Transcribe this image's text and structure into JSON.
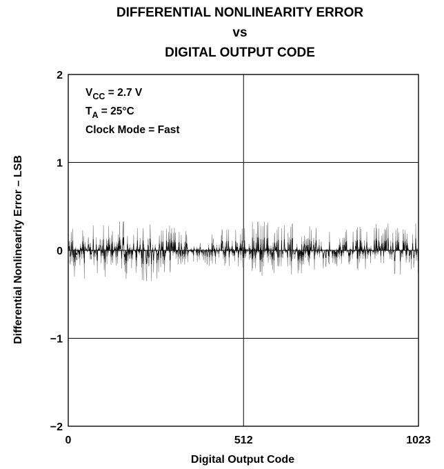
{
  "chart_data": {
    "type": "line",
    "title": [
      "DIFFERENTIAL NONLINEARITY ERROR",
      "vs",
      "DIGITAL OUTPUT CODE"
    ],
    "xlabel": "Digital Output Code",
    "ylabel": "Differential Nonlinearity Error – LSB",
    "xlim": [
      0,
      1023
    ],
    "ylim": [
      -2,
      2
    ],
    "x_ticks": [
      0,
      512,
      1023
    ],
    "x_tick_labels": [
      "0",
      "512",
      "1023"
    ],
    "y_ticks": [
      2,
      1,
      0,
      -1,
      -2
    ],
    "y_tick_labels": [
      "2",
      "1",
      "0",
      "−1",
      "−2"
    ],
    "grid": true,
    "annotations": {
      "vcc": {
        "main": "V",
        "sub": "CC",
        "rest": " = 2.7 V"
      },
      "ta": {
        "main": "T",
        "sub": "A",
        "rest": " = 25°C"
      },
      "clock": "Clock Mode = Fast"
    },
    "series": [
      {
        "envelope": {
          "x": [
            0,
            64,
            128,
            192,
            256,
            320,
            384,
            448,
            512,
            576,
            640,
            704,
            768,
            832,
            896,
            960,
            1023
          ],
          "y_max": [
            0.32,
            0.3,
            0.38,
            0.32,
            0.34,
            0.26,
            0.2,
            0.24,
            0.34,
            0.38,
            0.34,
            0.28,
            0.22,
            0.28,
            0.32,
            0.34,
            0.32
          ],
          "y_min": [
            -0.32,
            -0.33,
            -0.32,
            -0.34,
            -0.44,
            -0.2,
            -0.18,
            -0.2,
            -0.24,
            -0.34,
            -0.3,
            -0.24,
            -0.2,
            -0.26,
            -0.24,
            -0.28,
            -0.3
          ]
        },
        "color": "#000000"
      }
    ]
  }
}
